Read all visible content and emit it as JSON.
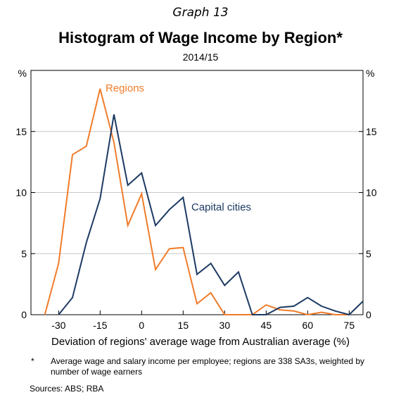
{
  "graph_number": "Graph 13",
  "footnote": {
    "marker": "*",
    "text": "Average wage and salary income per employee; regions are 338 SA3s, weighted by number of wage earners"
  },
  "sources": "Sources:  ABS; RBA",
  "colors": {
    "regions": "#f07c2a",
    "capital_cities": "#1c3a63",
    "grid": "#c8c8c8",
    "axis": "#000000"
  },
  "chart_data": {
    "type": "line",
    "title": "Histogram of Wage Income by Region*",
    "subtitle": "2014/15",
    "xlabel": "Deviation of regions' average wage from Australian average (%)",
    "ylabel_left": "%",
    "ylabel_right": "%",
    "xlim": [
      -40,
      80
    ],
    "ylim": [
      0,
      20
    ],
    "xticks": [
      -30,
      -15,
      0,
      15,
      30,
      45,
      60,
      75
    ],
    "xtick_labels": [
      "-30",
      "-15",
      "0",
      "15",
      "30",
      "45",
      "60",
      "75"
    ],
    "yticks": [
      0,
      5,
      10,
      15
    ],
    "ytick_labels": [
      "0",
      "5",
      "10",
      "15"
    ],
    "grid": "horizontal",
    "series": [
      {
        "name": "Regions",
        "x": [
          -35,
          -30,
          -25,
          -20,
          -15,
          -10,
          -5,
          0,
          5,
          10,
          15,
          20,
          25,
          30,
          35,
          40,
          45,
          50,
          55,
          60,
          65,
          70,
          75
        ],
        "y": [
          0,
          4.2,
          13.1,
          13.8,
          18.5,
          14.1,
          7.3,
          9.9,
          3.7,
          5.4,
          5.5,
          0.9,
          1.8,
          0,
          0,
          0,
          0.8,
          0.4,
          0.3,
          0,
          0.2,
          0,
          0
        ]
      },
      {
        "name": "Capital cities",
        "x": [
          -30,
          -25,
          -20,
          -15,
          -10,
          -5,
          0,
          5,
          10,
          15,
          20,
          25,
          30,
          35,
          40,
          45,
          50,
          55,
          60,
          65,
          70,
          75,
          80
        ],
        "y": [
          0,
          1.4,
          5.9,
          9.5,
          16.4,
          10.6,
          11.6,
          7.3,
          8.6,
          9.6,
          3.3,
          4.2,
          2.4,
          3.5,
          0,
          0,
          0.6,
          0.7,
          1.4,
          0.7,
          0.3,
          0,
          1.1
        ]
      }
    ],
    "annotations": [
      {
        "text": "Regions",
        "series": "Regions"
      },
      {
        "text": "Capital cities",
        "series": "Capital cities"
      }
    ]
  }
}
